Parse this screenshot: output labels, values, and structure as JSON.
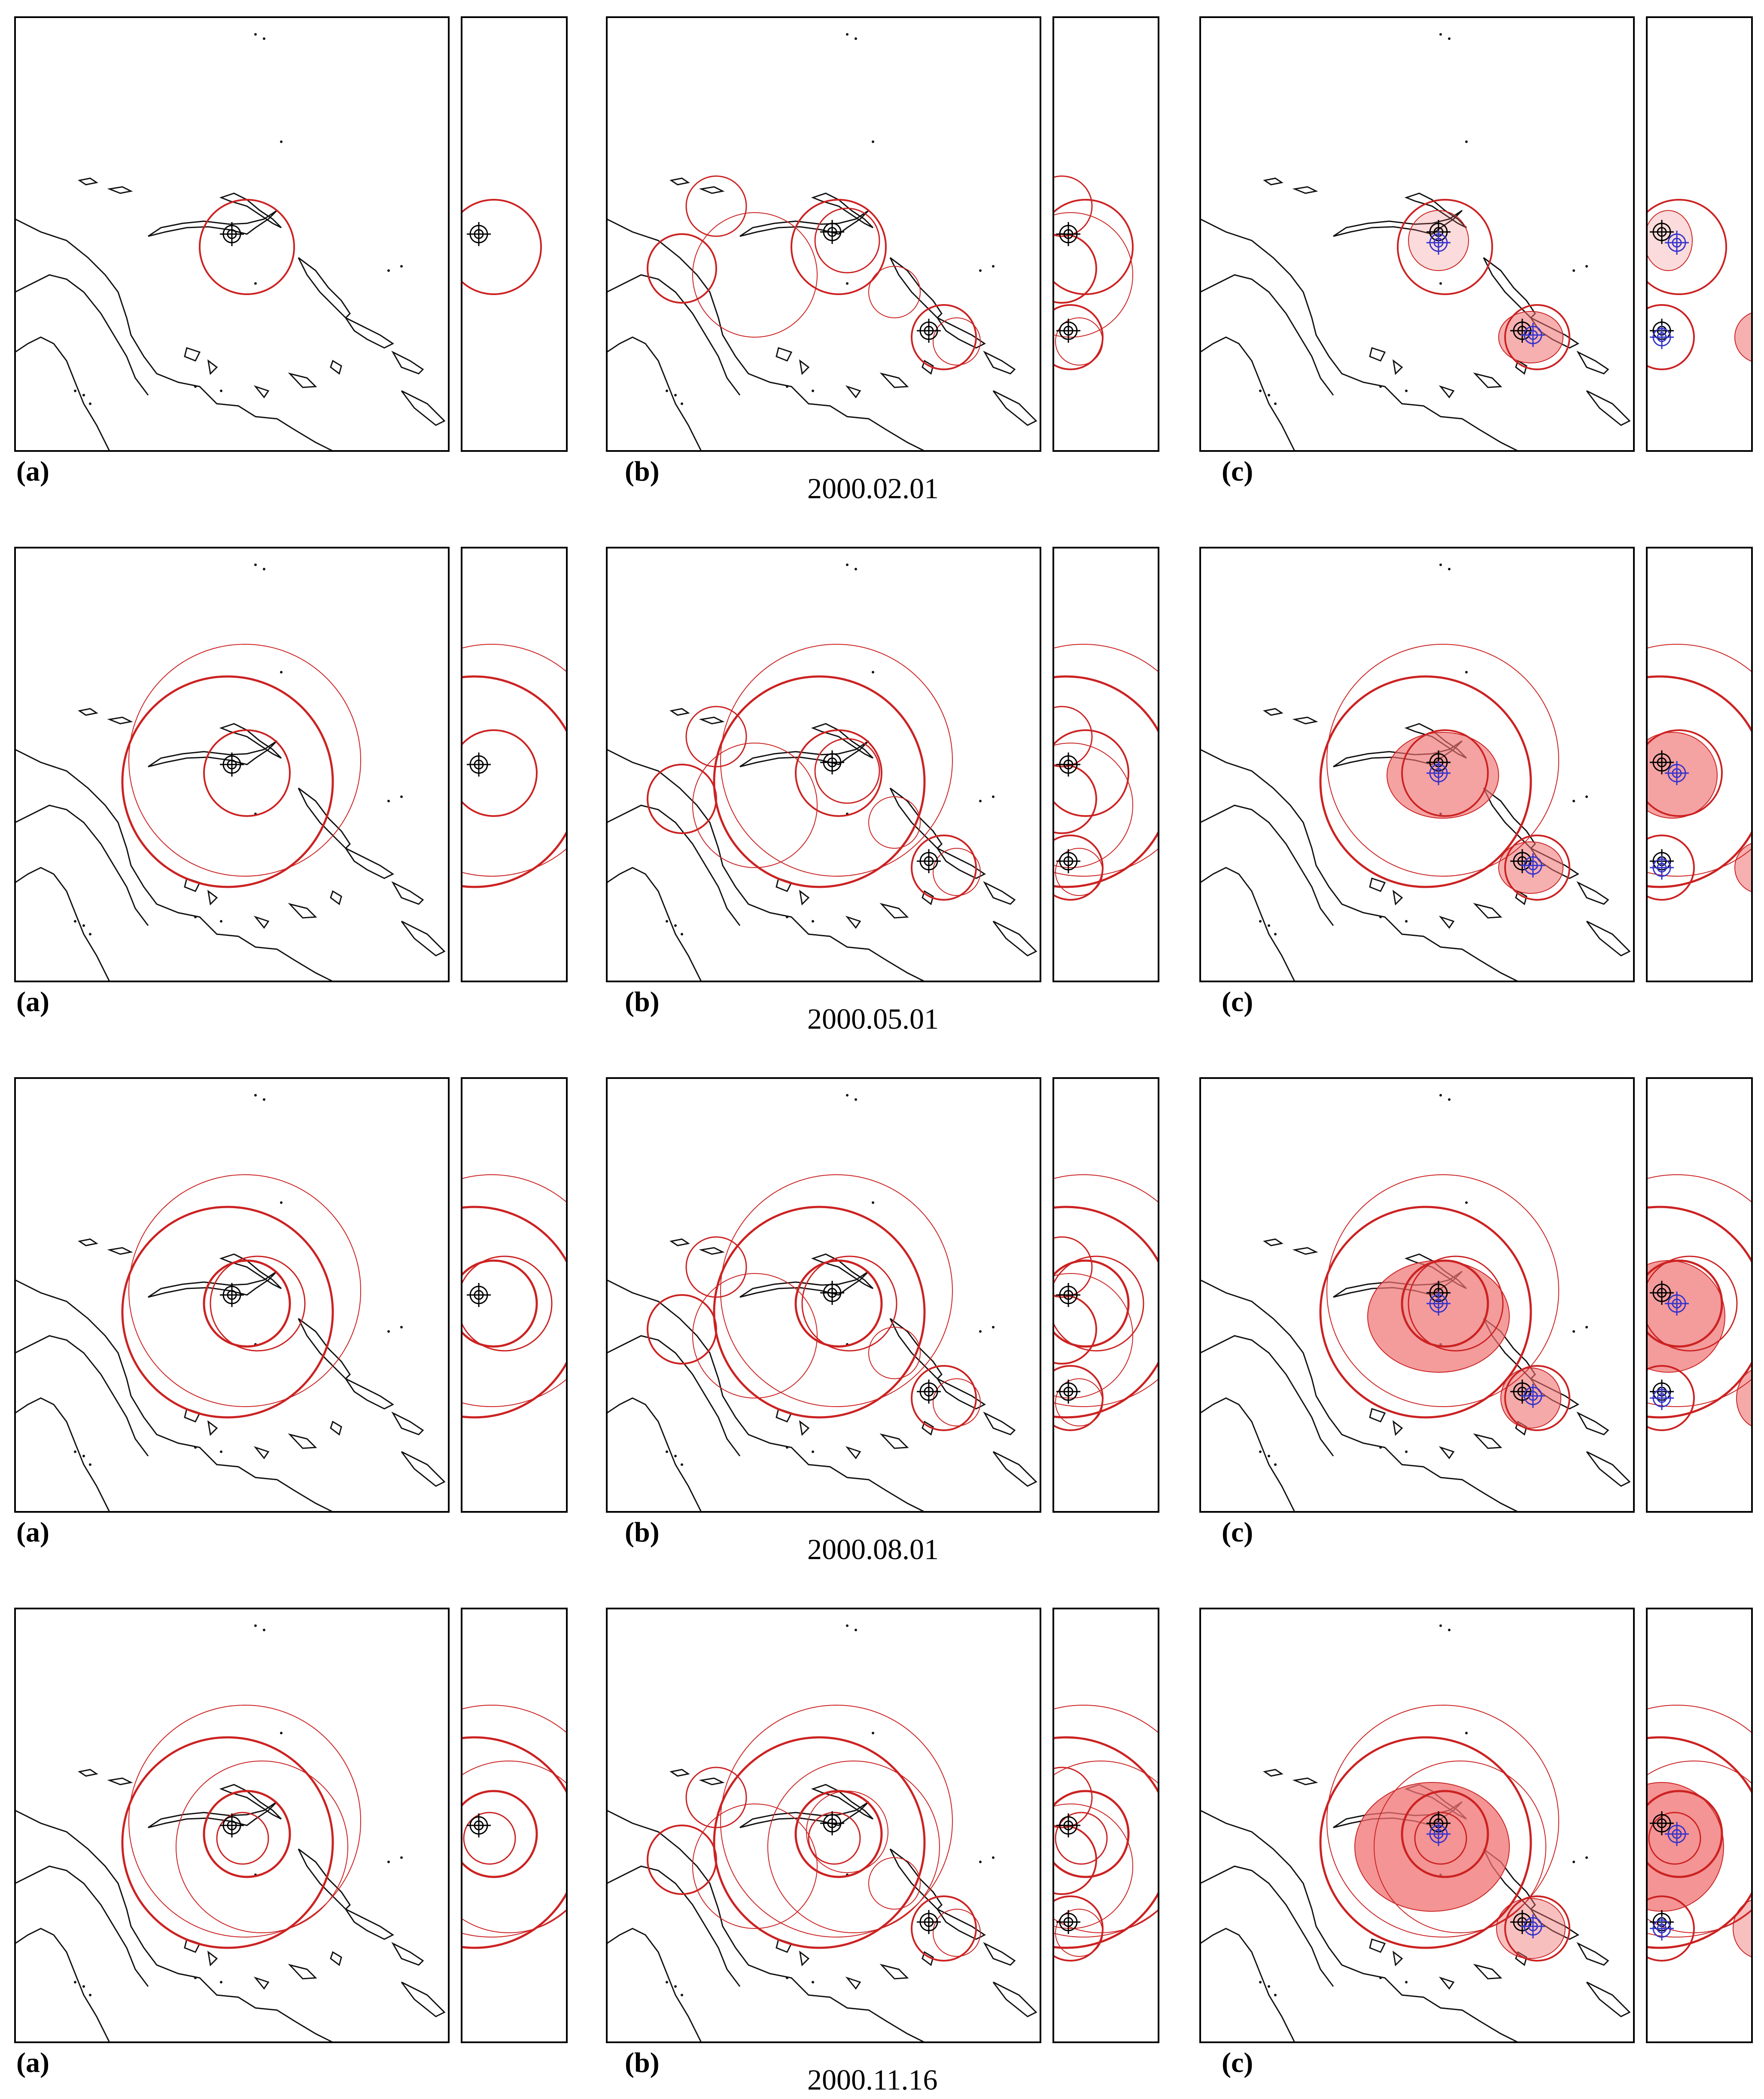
{
  "panel_labels": {
    "a": "(a)",
    "b": "(b)",
    "c": "(c)"
  },
  "rows": [
    {
      "date": "2000.02.01"
    },
    {
      "date": "2000.05.01"
    },
    {
      "date": "2000.08.01"
    },
    {
      "date": "2000.11.16"
    }
  ],
  "colors": {
    "frame": "#000000",
    "coastline": "#111111",
    "circle": "#cc2222",
    "fill": "#f07070",
    "marker": "#000000",
    "marker_blue": "#3333cc"
  },
  "icons": {
    "epicenter": "crosshair-icon",
    "centroid": "blue-crosshair-icon"
  }
}
